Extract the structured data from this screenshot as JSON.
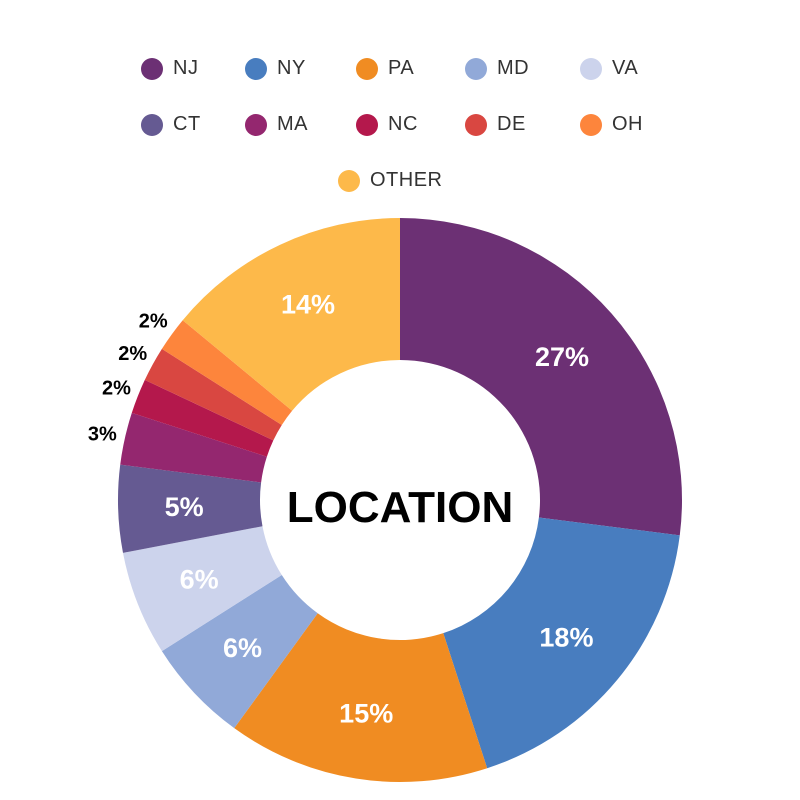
{
  "chart_data": {
    "type": "pie",
    "variant": "donut",
    "title": "LOCATION",
    "legend_position": "top",
    "categories": [
      "NJ",
      "NY",
      "PA",
      "MD",
      "VA",
      "CT",
      "MA",
      "NC",
      "DE",
      "OH",
      "OTHER"
    ],
    "values": [
      27,
      18,
      15,
      6,
      6,
      5,
      3,
      2,
      2,
      2,
      14
    ],
    "labels": [
      "27%",
      "18%",
      "15%",
      "6%",
      "6%",
      "5%",
      "3%",
      "2%",
      "2%",
      "2%",
      "14%"
    ],
    "colors": [
      "#6c3074",
      "#487dbf",
      "#f08c22",
      "#91a9d8",
      "#ccd3ec",
      "#655a92",
      "#94276f",
      "#b4184c",
      "#d94741",
      "#fd853c",
      "#fdb94a"
    ],
    "unit": "%"
  }
}
